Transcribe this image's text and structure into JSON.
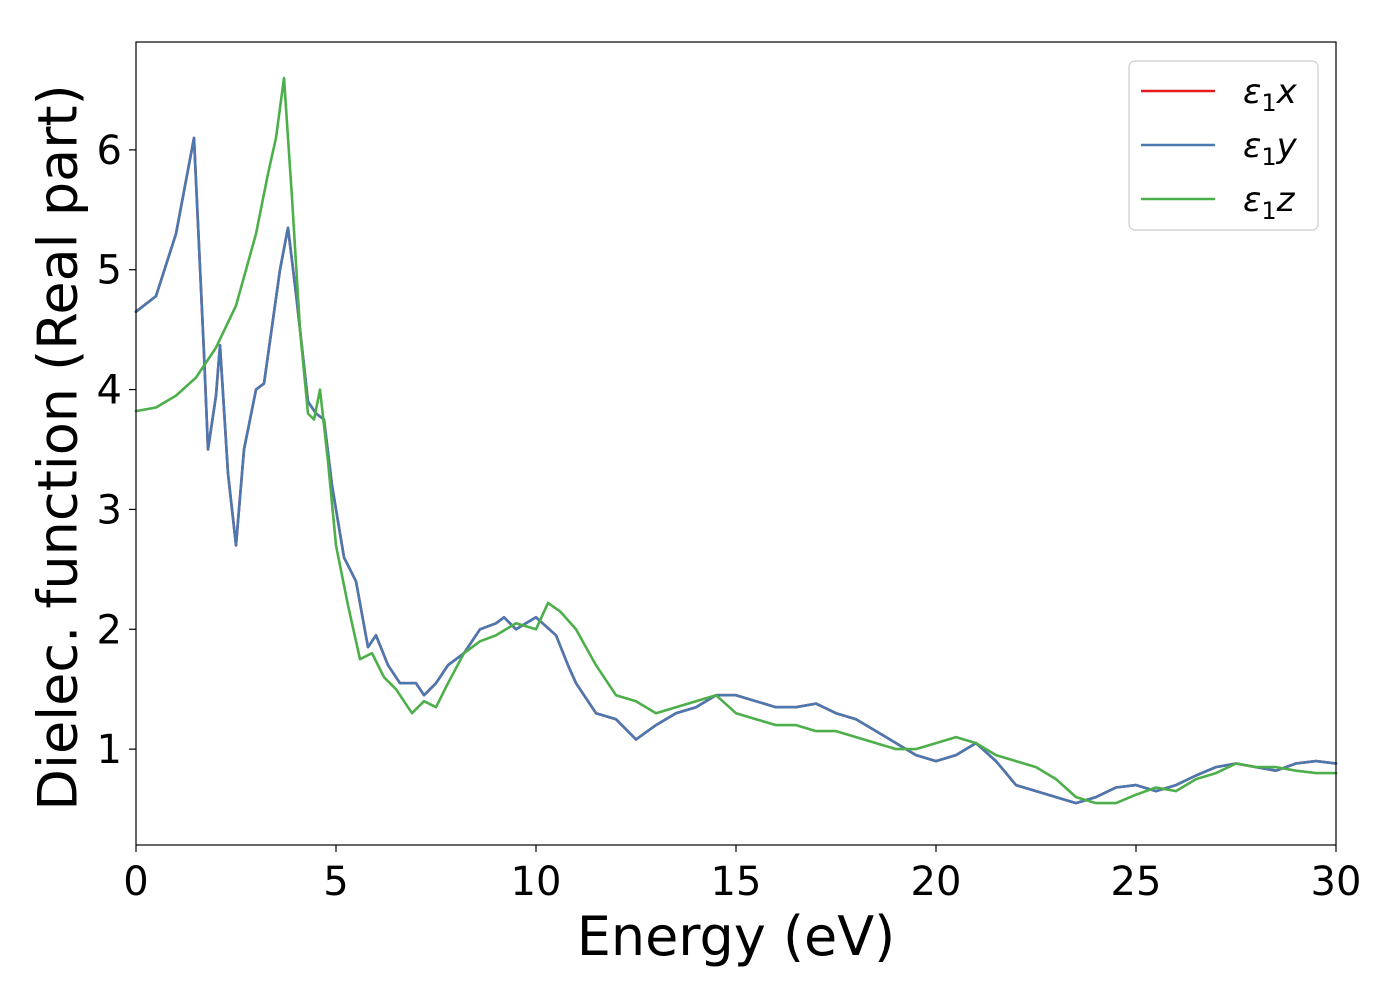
{
  "chart_data": {
    "type": "line",
    "title": "",
    "xlabel": "Energy (eV)",
    "ylabel": "Dielec. function (Real part)",
    "xlim": [
      0,
      30
    ],
    "ylim": [
      0.2,
      6.9
    ],
    "xticks": [
      0,
      5,
      10,
      15,
      20,
      25,
      30
    ],
    "xtick_labels": [
      "0",
      "5",
      "10",
      "15",
      "20",
      "25",
      "30"
    ],
    "yticks": [
      1,
      2,
      3,
      4,
      5,
      6
    ],
    "ytick_labels": [
      "1",
      "2",
      "3",
      "4",
      "5",
      "6"
    ],
    "grid": false,
    "legend_position": "top-right",
    "series": [
      {
        "name": "ε₁x",
        "legend_symbol": "ε",
        "legend_sub": "1",
        "legend_suffix": "x",
        "color": "#e41a1c",
        "x": [
          0,
          0.5,
          1.0,
          1.45,
          1.7,
          1.8,
          2.0,
          2.1,
          2.3,
          2.5,
          2.7,
          3.0,
          3.2,
          3.6,
          3.8,
          4.0,
          4.3,
          4.5,
          4.7,
          4.9,
          5.2,
          5.5,
          5.8,
          6.0,
          6.3,
          6.6,
          7.0,
          7.2,
          7.5,
          7.8,
          8.2,
          8.6,
          9.0,
          9.2,
          9.5,
          10.0,
          10.5,
          10.8,
          11.0,
          11.5,
          12.0,
          12.5,
          13.0,
          13.5,
          14.0,
          14.5,
          15.0,
          15.5,
          16.0,
          16.5,
          17.0,
          17.5,
          18.0,
          18.5,
          19.0,
          19.5,
          20.0,
          20.5,
          21.0,
          21.5,
          22.0,
          22.5,
          23.0,
          23.5,
          24.0,
          24.5,
          25.0,
          25.5,
          26.0,
          26.5,
          27.0,
          27.5,
          28.0,
          28.5,
          29.0,
          29.5,
          30.0
        ],
        "y": [
          4.65,
          4.78,
          5.3,
          6.1,
          4.3,
          3.5,
          3.95,
          4.37,
          3.3,
          2.7,
          3.5,
          4.0,
          4.05,
          5.0,
          5.35,
          4.8,
          3.9,
          3.8,
          3.75,
          3.2,
          2.6,
          2.4,
          1.85,
          1.95,
          1.7,
          1.55,
          1.55,
          1.45,
          1.55,
          1.7,
          1.8,
          2.0,
          2.05,
          2.1,
          2.0,
          2.1,
          1.95,
          1.7,
          1.55,
          1.3,
          1.25,
          1.08,
          1.2,
          1.3,
          1.35,
          1.45,
          1.45,
          1.4,
          1.35,
          1.35,
          1.38,
          1.3,
          1.25,
          1.15,
          1.05,
          0.95,
          0.9,
          0.95,
          1.05,
          0.9,
          0.7,
          0.65,
          0.6,
          0.55,
          0.6,
          0.68,
          0.7,
          0.65,
          0.7,
          0.78,
          0.85,
          0.88,
          0.85,
          0.82,
          0.88,
          0.9,
          0.88
        ]
      },
      {
        "name": "ε₁y",
        "legend_symbol": "ε",
        "legend_sub": "1",
        "legend_suffix": "y",
        "color": "#4a78b0",
        "x": [
          0,
          0.5,
          1.0,
          1.45,
          1.7,
          1.8,
          2.0,
          2.1,
          2.3,
          2.5,
          2.7,
          3.0,
          3.2,
          3.6,
          3.8,
          4.0,
          4.3,
          4.5,
          4.7,
          4.9,
          5.2,
          5.5,
          5.8,
          6.0,
          6.3,
          6.6,
          7.0,
          7.2,
          7.5,
          7.8,
          8.2,
          8.6,
          9.0,
          9.2,
          9.5,
          10.0,
          10.5,
          10.8,
          11.0,
          11.5,
          12.0,
          12.5,
          13.0,
          13.5,
          14.0,
          14.5,
          15.0,
          15.5,
          16.0,
          16.5,
          17.0,
          17.5,
          18.0,
          18.5,
          19.0,
          19.5,
          20.0,
          20.5,
          21.0,
          21.5,
          22.0,
          22.5,
          23.0,
          23.5,
          24.0,
          24.5,
          25.0,
          25.5,
          26.0,
          26.5,
          27.0,
          27.5,
          28.0,
          28.5,
          29.0,
          29.5,
          30.0
        ],
        "y": [
          4.65,
          4.78,
          5.3,
          6.1,
          4.3,
          3.5,
          3.95,
          4.37,
          3.3,
          2.7,
          3.5,
          4.0,
          4.05,
          5.0,
          5.35,
          4.8,
          3.9,
          3.8,
          3.75,
          3.2,
          2.6,
          2.4,
          1.85,
          1.95,
          1.7,
          1.55,
          1.55,
          1.45,
          1.55,
          1.7,
          1.8,
          2.0,
          2.05,
          2.1,
          2.0,
          2.1,
          1.95,
          1.7,
          1.55,
          1.3,
          1.25,
          1.08,
          1.2,
          1.3,
          1.35,
          1.45,
          1.45,
          1.4,
          1.35,
          1.35,
          1.38,
          1.3,
          1.25,
          1.15,
          1.05,
          0.95,
          0.9,
          0.95,
          1.05,
          0.9,
          0.7,
          0.65,
          0.6,
          0.55,
          0.6,
          0.68,
          0.7,
          0.65,
          0.7,
          0.78,
          0.85,
          0.88,
          0.85,
          0.82,
          0.88,
          0.9,
          0.88
        ]
      },
      {
        "name": "ε₁z",
        "legend_symbol": "ε",
        "legend_sub": "1",
        "legend_suffix": "z",
        "color": "#4daf4a",
        "x": [
          0,
          0.5,
          1.0,
          1.5,
          2.0,
          2.5,
          3.0,
          3.3,
          3.5,
          3.7,
          3.9,
          4.1,
          4.3,
          4.45,
          4.6,
          4.8,
          5.0,
          5.3,
          5.6,
          5.9,
          6.2,
          6.5,
          6.9,
          7.2,
          7.5,
          7.8,
          8.2,
          8.6,
          9.0,
          9.5,
          10.0,
          10.3,
          10.6,
          11.0,
          11.5,
          12.0,
          12.5,
          13.0,
          13.5,
          14.0,
          14.5,
          15.0,
          15.5,
          16.0,
          16.5,
          17.0,
          17.5,
          18.0,
          18.5,
          19.0,
          19.5,
          20.0,
          20.5,
          21.0,
          21.5,
          22.0,
          22.5,
          23.0,
          23.5,
          24.0,
          24.5,
          25.0,
          25.5,
          26.0,
          26.5,
          27.0,
          27.5,
          28.0,
          28.5,
          29.0,
          29.5,
          30.0
        ],
        "y": [
          3.82,
          3.85,
          3.95,
          4.1,
          4.35,
          4.7,
          5.3,
          5.8,
          6.1,
          6.6,
          5.6,
          4.5,
          3.8,
          3.75,
          4.0,
          3.4,
          2.7,
          2.2,
          1.75,
          1.8,
          1.6,
          1.5,
          1.3,
          1.4,
          1.35,
          1.55,
          1.8,
          1.9,
          1.95,
          2.05,
          2.0,
          2.22,
          2.15,
          2.0,
          1.7,
          1.45,
          1.4,
          1.3,
          1.35,
          1.4,
          1.45,
          1.3,
          1.25,
          1.2,
          1.2,
          1.15,
          1.15,
          1.1,
          1.05,
          1.0,
          1.0,
          1.05,
          1.1,
          1.05,
          0.95,
          0.9,
          0.85,
          0.75,
          0.6,
          0.55,
          0.55,
          0.62,
          0.68,
          0.65,
          0.75,
          0.8,
          0.88,
          0.85,
          0.85,
          0.82,
          0.8,
          0.8
        ]
      }
    ]
  }
}
